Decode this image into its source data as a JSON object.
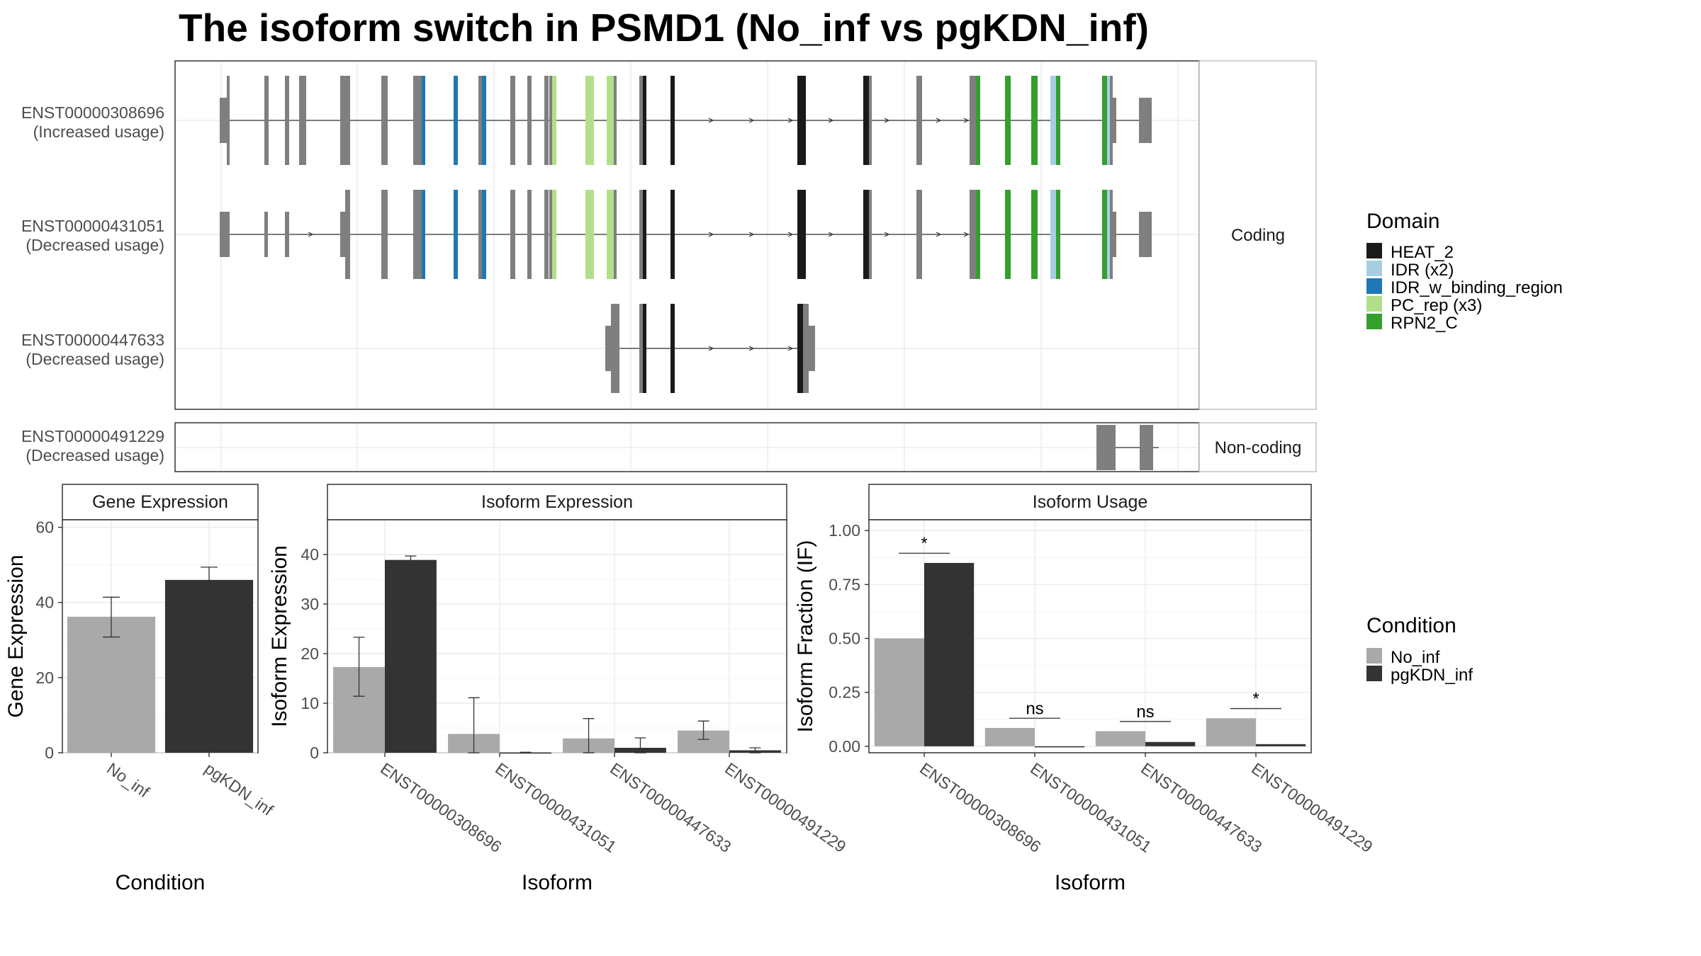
{
  "title": "The isoform switch in PSMD1 (No_inf vs pgKDN_inf)",
  "colors": {
    "heat2": "#1a1a1a",
    "idr": "#a6cee3",
    "idr_binding": "#1f78b4",
    "pc_rep": "#b2df8a",
    "rpn2c": "#33a02c",
    "exon_grey": "#7f7f7f",
    "no_inf": "#a9a9a9",
    "pgkdn_inf": "#333333"
  },
  "structure": {
    "coding_strip": "Coding",
    "noncoding_strip": "Non-coding",
    "transcripts": [
      {
        "id": "ENST00000308696",
        "usage": "(Increased usage)",
        "group": "coding"
      },
      {
        "id": "ENST00000431051",
        "usage": "(Decreased usage)",
        "group": "coding"
      },
      {
        "id": "ENST00000447633",
        "usage": "(Decreased usage)",
        "group": "coding"
      },
      {
        "id": "ENST00000491229",
        "usage": "(Decreased usage)",
        "group": "noncoding"
      }
    ]
  },
  "legends": {
    "domain_title": "Domain",
    "domains": [
      {
        "label": "HEAT_2",
        "color": "#1a1a1a"
      },
      {
        "label": "IDR (x2)",
        "color": "#a6cee3"
      },
      {
        "label": "IDR_w_binding_region",
        "color": "#1f78b4"
      },
      {
        "label": "PC_rep (x3)",
        "color": "#b2df8a"
      },
      {
        "label": "RPN2_C",
        "color": "#33a02c"
      }
    ],
    "condition_title": "Condition",
    "conditions": [
      {
        "label": "No_inf",
        "color": "#a9a9a9"
      },
      {
        "label": "pgKDN_inf",
        "color": "#333333"
      }
    ]
  },
  "chart_data": [
    {
      "type": "bar",
      "title": "Gene Expression",
      "xlabel": "Condition",
      "ylabel": "Gene Expression",
      "ylim": [
        0,
        62
      ],
      "yticks": [
        "0",
        "20",
        "40",
        "60"
      ],
      "categories": [
        "No_inf",
        "pgKDN_inf"
      ],
      "values": [
        36.2,
        46.0
      ],
      "errors": [
        [
          30.8,
          41.4
        ],
        [
          42.6,
          49.4
        ]
      ]
    },
    {
      "type": "bar",
      "title": "Isoform Expression",
      "xlabel": "Isoform",
      "ylabel": "Isoform Expression",
      "ylim": [
        0,
        47
      ],
      "yticks": [
        "0",
        "10",
        "20",
        "30",
        "40"
      ],
      "categories": [
        "ENST00000308696",
        "ENST00000431051",
        "ENST00000447633",
        "ENST00000491229"
      ],
      "series": [
        {
          "name": "No_inf",
          "values": [
            17.3,
            3.8,
            2.9,
            4.5
          ],
          "errors": [
            [
              11.4,
              23.3
            ],
            [
              0.0,
              11.1
            ],
            [
              0.0,
              6.9
            ],
            [
              2.7,
              6.4
            ]
          ]
        },
        {
          "name": "pgKDN_inf",
          "values": [
            38.9,
            0.05,
            1.0,
            0.5
          ],
          "errors": [
            [
              38.0,
              39.7
            ],
            [
              0.0,
              0.1
            ],
            [
              0.0,
              3.0
            ],
            [
              0.0,
              1.0
            ]
          ]
        }
      ]
    },
    {
      "type": "bar",
      "title": "Isoform Usage",
      "xlabel": "Isoform",
      "ylabel": "Isoform Fraction (IF)",
      "ylim": [
        -0.03,
        1.05
      ],
      "yticks": [
        "0.00",
        "0.25",
        "0.50",
        "0.75",
        "1.00"
      ],
      "categories": [
        "ENST00000308696",
        "ENST00000431051",
        "ENST00000447633",
        "ENST00000491229"
      ],
      "series": [
        {
          "name": "No_inf",
          "values": [
            0.5,
            0.085,
            0.07,
            0.13
          ]
        },
        {
          "name": "pgKDN_inf",
          "values": [
            0.85,
            0.0,
            0.02,
            0.01
          ]
        }
      ],
      "significance": [
        "*",
        "ns",
        "ns",
        "*"
      ]
    }
  ]
}
